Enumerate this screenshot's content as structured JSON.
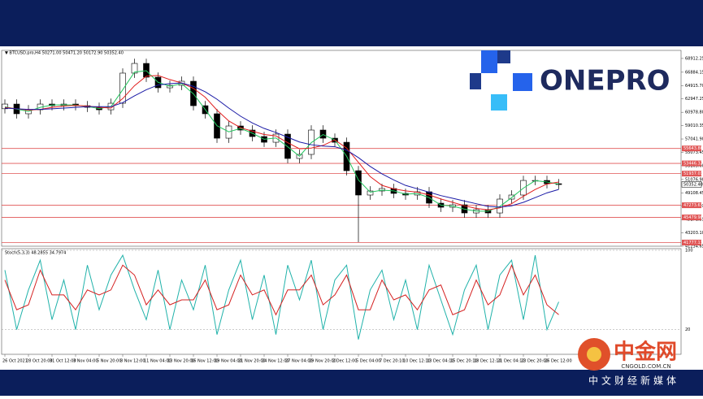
{
  "chart_data": {
    "type": "candlestick",
    "title": "▼ BTCUSD.pro,H4  50271.00 50471.20 50172.90 50352.40",
    "categories": [
      "26 Oct 2021",
      null,
      "28 Oct 20:00",
      null,
      "31 Oct 12:00",
      null,
      "3 Nov 04:00",
      null,
      "5 Nov 20:00",
      null,
      "8 Nov 12:00",
      null,
      "11 Nov 04:00",
      null,
      "13 Nov 20:00",
      null,
      "16 Nov 12:00",
      null,
      "19 Nov 04:00",
      null,
      "21 Nov 20:00",
      null,
      "24 Nov 12:00",
      null,
      "27 Nov 04:00",
      null,
      "29 Nov 20:00",
      null,
      "2 Dec 12:00",
      null,
      "5 Dec 04:00",
      null,
      "7 Dec 20:10",
      null,
      "10 Dec 12:10",
      null,
      "13 Dec 04:10",
      null,
      "15 Dec 20:10",
      null,
      "18 Dec 12:10",
      null,
      "21 Dec 04:10",
      null,
      "23 Dec 20:00",
      null,
      "26 Dec 12:00",
      null
    ],
    "open": [
      61500,
      62190,
      60760,
      61350,
      62190,
      61950,
      62190,
      61950,
      61710,
      61350,
      62310,
      66750,
      68180,
      66150,
      64590,
      64950,
      65550,
      61950,
      60760,
      57160,
      58960,
      58360,
      57400,
      56560,
      57760,
      54170,
      54770,
      58360,
      57160,
      56560,
      52370,
      48780,
      49380,
      49740,
      49020,
      48780,
      49260,
      47580,
      46980,
      47340,
      46140,
      46620,
      46140,
      48180,
      48780,
      50930,
      50930,
      50450
    ],
    "high": [
      62890,
      62890,
      62050,
      62890,
      62890,
      62890,
      62890,
      62650,
      62410,
      63010,
      67450,
      68880,
      68880,
      66850,
      65650,
      66250,
      66250,
      62650,
      61460,
      59660,
      59660,
      59060,
      58100,
      58460,
      58460,
      55470,
      59060,
      59060,
      57860,
      57260,
      53070,
      50080,
      50440,
      50440,
      49720,
      49960,
      49960,
      48280,
      48040,
      48040,
      47320,
      47320,
      48880,
      49480,
      51630,
      51630,
      51630,
      51150
    ],
    "low": [
      60800,
      60060,
      60060,
      60650,
      61250,
      61250,
      61250,
      61010,
      60650,
      60650,
      61610,
      66050,
      65450,
      63890,
      63890,
      64250,
      61250,
      60060,
      56460,
      56460,
      57660,
      56700,
      55860,
      55860,
      53470,
      53470,
      54070,
      56460,
      55860,
      51670,
      41830,
      48080,
      48680,
      48320,
      48080,
      48080,
      46880,
      46280,
      46280,
      45440,
      45440,
      45440,
      45440,
      47480,
      48080,
      50230,
      49750,
      49630
    ],
    "close": [
      62190,
      60760,
      61350,
      62190,
      61950,
      62190,
      61950,
      61710,
      61350,
      62310,
      66750,
      68180,
      66150,
      64590,
      64950,
      65550,
      61950,
      60760,
      57160,
      58960,
      58360,
      57400,
      56560,
      57760,
      54170,
      54770,
      58360,
      57160,
      56560,
      52370,
      48780,
      49380,
      49740,
      49020,
      48780,
      49260,
      47580,
      46980,
      47340,
      46140,
      46620,
      46140,
      48180,
      48780,
      50930,
      50930,
      50450,
      50330
    ],
    "series": [
      {
        "color": "#22c55e",
        "values": [
          61800,
          61450,
          61100,
          61700,
          62050,
          62070,
          62050,
          61830,
          61530,
          61800,
          64300,
          66900,
          67100,
          65400,
          64800,
          65200,
          63700,
          61400,
          59000,
          58100,
          58600,
          57900,
          57000,
          57200,
          55900,
          54500,
          56500,
          57700,
          56900,
          54500,
          51000,
          49200,
          49500,
          49400,
          48900,
          49000,
          48400,
          47300,
          47150,
          46700,
          46400,
          46400,
          47100,
          48400,
          49800,
          50900,
          50700,
          50400
        ]
      },
      {
        "color": "#e11d1d",
        "values": [
          61700,
          61500,
          61300,
          61400,
          61700,
          61900,
          62000,
          61900,
          61700,
          61600,
          63000,
          64900,
          66300,
          66400,
          65800,
          65300,
          64500,
          63200,
          61300,
          59700,
          58700,
          58200,
          57700,
          57500,
          56500,
          55600,
          55700,
          56100,
          56900,
          55700,
          53600,
          51500,
          50200,
          49700,
          49400,
          49200,
          48800,
          48200,
          47700,
          47200,
          46800,
          46600,
          46900,
          47500,
          48600,
          49600,
          50400,
          50700
        ]
      },
      {
        "color": "#1a1aa6",
        "values": [
          61600,
          61500,
          61400,
          61400,
          61500,
          61600,
          61700,
          61800,
          61800,
          61800,
          62400,
          63400,
          64300,
          65000,
          65200,
          65300,
          64800,
          64000,
          62900,
          61600,
          60400,
          59400,
          58600,
          58000,
          57300,
          56600,
          56200,
          56000,
          55900,
          55400,
          54300,
          53000,
          51900,
          51000,
          50200,
          49700,
          49200,
          48700,
          48300,
          47900,
          47500,
          47100,
          47000,
          47200,
          47700,
          48400,
          49100,
          49600
        ]
      }
    ],
    "ylim": [
      41234.65,
      70102
    ],
    "yticks": [
      68912.25,
      66884.15,
      {
        "value": 64915.7,
        "label": "64915.70"
      },
      62947.25,
      {
        "value": 60978.8,
        "label": "60978.80"
      },
      59010.35,
      {
        "value": 57041.9,
        "label": "57041.90"
      },
      55073.45,
      {
        "value": 53105,
        "label": "53105.00"
      },
      {
        "value": 51076.9,
        "label": "51076.90"
      },
      49108.45,
      {
        "value": 47140,
        "label": "47140.00"
      },
      45171.55,
      {
        "value": 43203.1,
        "label": "43203.10"
      },
      41234.65
    ],
    "levels": [
      55643.86,
      53446.32,
      51937.03,
      47273.63,
      45479.98,
      41777.13
    ],
    "level_color": "#e05555",
    "current_price": {
      "value": 50352.4,
      "label": "50352.40"
    },
    "indicator": {
      "title": "Stoch(5,3,3) 48.2855 34.7974",
      "ylim": [
        0,
        100
      ],
      "yticks": [
        100,
        20
      ],
      "series": [
        {
          "color": "#20b2aa",
          "values": [
            80,
            20,
            60,
            90,
            30,
            70,
            20,
            85,
            40,
            75,
            95,
            60,
            30,
            80,
            20,
            70,
            40,
            85,
            15,
            60,
            90,
            30,
            75,
            15,
            85,
            50,
            90,
            20,
            70,
            85,
            10,
            60,
            80,
            30,
            70,
            20,
            85,
            50,
            15,
            60,
            85,
            20,
            75,
            90,
            30,
            95,
            20,
            48
          ]
        },
        {
          "color": "#d42020",
          "values": [
            70,
            40,
            45,
            80,
            55,
            55,
            40,
            60,
            55,
            60,
            85,
            75,
            45,
            60,
            45,
            50,
            50,
            70,
            40,
            45,
            75,
            55,
            60,
            35,
            60,
            60,
            75,
            45,
            55,
            75,
            40,
            40,
            70,
            50,
            55,
            40,
            60,
            65,
            35,
            40,
            70,
            45,
            55,
            85,
            55,
            75,
            45,
            35
          ]
        }
      ]
    }
  },
  "branding": {
    "logo": "ONEPRO",
    "site": "中金网",
    "domain": "CNGOLD.COM.CN",
    "tagline": "中文财经新媒体"
  }
}
